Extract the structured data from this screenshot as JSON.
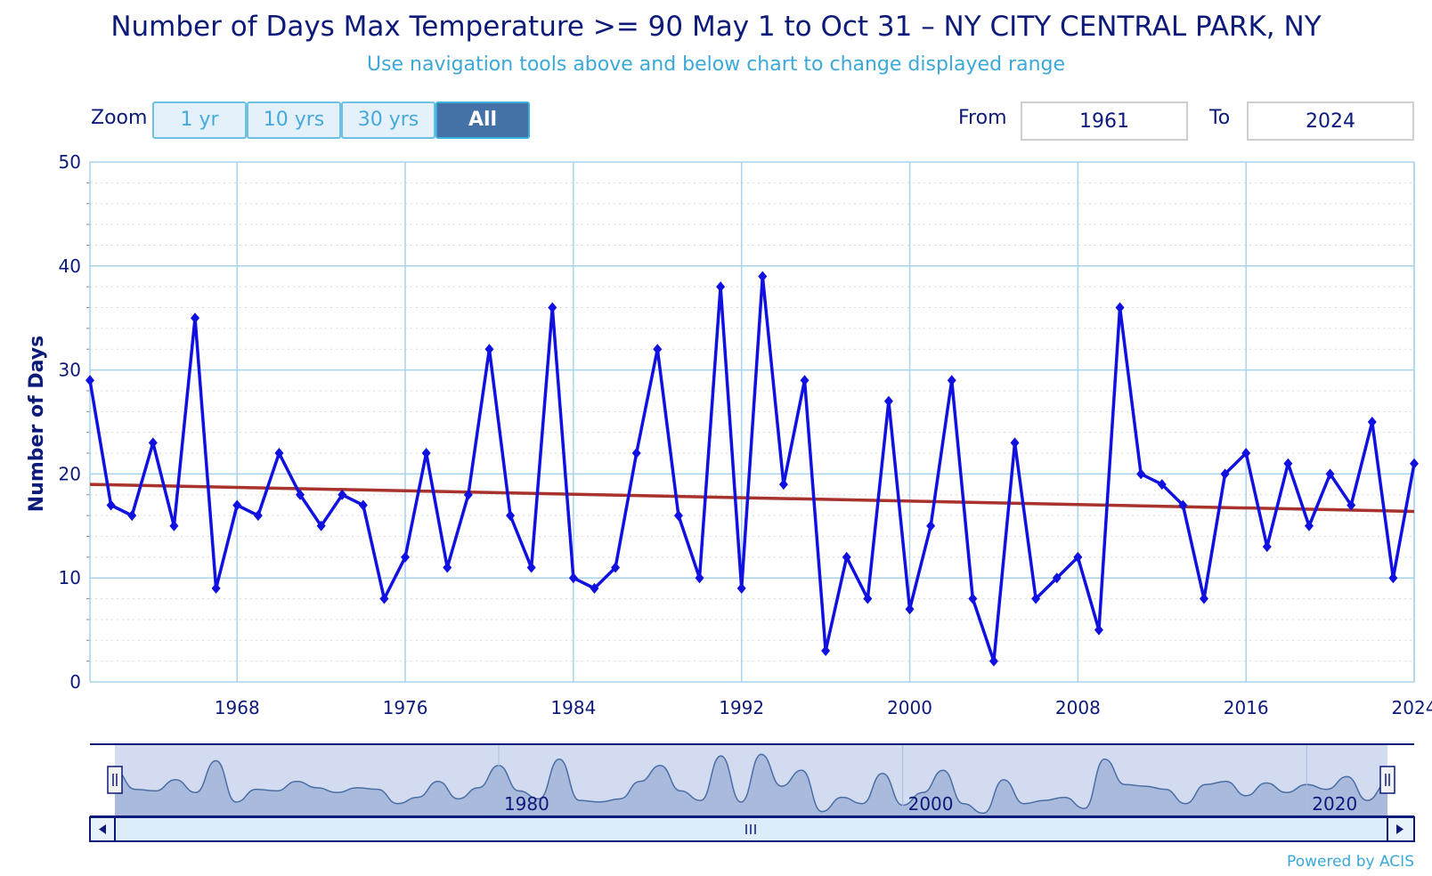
{
  "header": {
    "title": "Number of Days Max Temperature >= 90 May 1 to Oct 31 – NY CITY CENTRAL PARK, NY",
    "subtitle": "Use navigation tools above and below chart to change displayed range"
  },
  "zoom": {
    "label": "Zoom",
    "buttons": [
      "1 yr",
      "10 yrs",
      "30 yrs",
      "All"
    ],
    "active": "All"
  },
  "range": {
    "from_label": "From",
    "from_value": "1961",
    "to_label": "To",
    "to_value": "2024"
  },
  "colors": {
    "series": "#1010e0",
    "trend": "#a8322c",
    "grid": "#a9d3ec",
    "navigator_fill": "#a7b8da",
    "navigator_line": "#4a6ea6"
  },
  "chart_data": {
    "type": "line",
    "title": "Number of Days Max Temperature >= 90 May 1 to Oct 31 – NY CITY CENTRAL PARK, NY",
    "ylabel": "Number of Days",
    "xlabel": "",
    "ylim": [
      0,
      50
    ],
    "xlim": [
      1961,
      2024
    ],
    "yticks": [
      0,
      10,
      20,
      30,
      40,
      50
    ],
    "xticks": [
      1968,
      1976,
      1984,
      1992,
      2000,
      2008,
      2016,
      2024
    ],
    "grid": true,
    "series": [
      {
        "x": [
          1961,
          1962,
          1963,
          1964,
          1965,
          1966,
          1967,
          1968,
          1969,
          1970,
          1971,
          1972,
          1973,
          1974,
          1975,
          1976,
          1977,
          1978,
          1979,
          1980,
          1981,
          1982,
          1983,
          1984,
          1985,
          1986,
          1987,
          1988,
          1989,
          1990,
          1991,
          1992,
          1993,
          1994,
          1995,
          1996,
          1997,
          1998,
          1999,
          2000,
          2001,
          2002,
          2003,
          2004,
          2005,
          2006,
          2007,
          2008,
          2009,
          2010,
          2011,
          2012,
          2013,
          2014,
          2015,
          2016,
          2017,
          2018,
          2019,
          2020,
          2021,
          2022,
          2023,
          2024
        ],
        "values": [
          29,
          17,
          16,
          23,
          15,
          35,
          9,
          17,
          16,
          22,
          18,
          15,
          18,
          17,
          8,
          12,
          22,
          11,
          18,
          32,
          16,
          11,
          36,
          10,
          9,
          11,
          22,
          32,
          16,
          10,
          38,
          9,
          39,
          19,
          29,
          3,
          12,
          8,
          27,
          7,
          15,
          29,
          8,
          2,
          23,
          8,
          10,
          12,
          5,
          36,
          20,
          19,
          17,
          8,
          20,
          22,
          13,
          21,
          15,
          20,
          17,
          25,
          10,
          21
        ]
      }
    ],
    "trend": {
      "start": [
        1961,
        19.0
      ],
      "end": [
        2024,
        16.4
      ]
    },
    "navigator": {
      "xticks": [
        1980,
        2000,
        2020
      ]
    }
  },
  "footer": {
    "credit": "Powered by ACIS"
  }
}
